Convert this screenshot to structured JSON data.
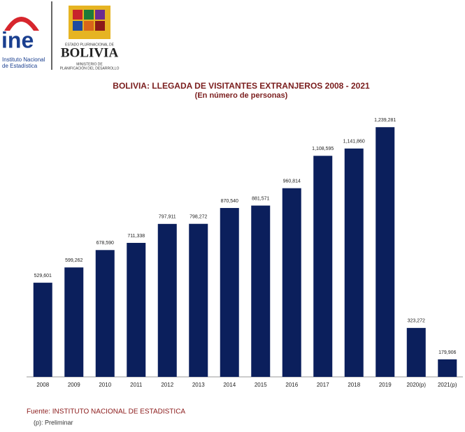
{
  "header": {
    "logo_text": "ine",
    "institute_line1": "Instituto Nacional",
    "institute_line2": "de Estadística",
    "state_line": "ESTADO PLURINACIONAL DE",
    "country": "BOLIVIA",
    "ministry_line1": "MINISTERIO DE",
    "ministry_line2": "PLANIFICACIÓN DEL DESARROLLO"
  },
  "chart_data": {
    "type": "bar",
    "title": "BOLIVIA:  LLEGADA  DE  VISITANTES  EXTRANJEROS  2008 - 2021",
    "subtitle": "(En  número de personas)",
    "categories": [
      "2008",
      "2009",
      "2010",
      "2011",
      "2012",
      "2013",
      "2014",
      "2015",
      "2016",
      "2017",
      "2018",
      "2019",
      "2020(p)",
      "2021(p)"
    ],
    "values": [
      529601,
      599262,
      678590,
      711338,
      797911,
      798272,
      870540,
      881571,
      960814,
      1108595,
      1141860,
      1239281,
      323272,
      179906
    ],
    "value_labels": [
      "529,601",
      "599,262",
      "678,590",
      "711,338",
      "797,911",
      "798,272",
      "870,540",
      "881,571",
      "960,814",
      "1,108,595",
      "1,141,860",
      "1,239,281",
      "323,272",
      "179,906"
    ],
    "color": "#0b1f5c",
    "ylim": [
      100000,
      1240000
    ]
  },
  "footer": {
    "source": "Fuente: INSTITUTO NACIONAL DE ESTADISTICA",
    "note": "(p): Preliminar"
  }
}
